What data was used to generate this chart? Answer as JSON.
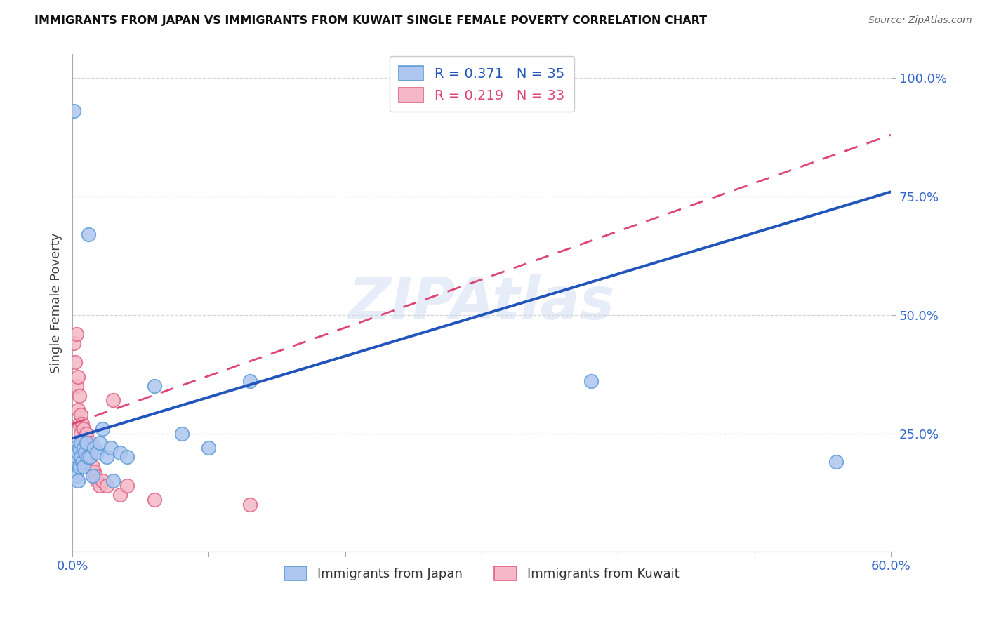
{
  "title": "IMMIGRANTS FROM JAPAN VS IMMIGRANTS FROM KUWAIT SINGLE FEMALE POVERTY CORRELATION CHART",
  "source": "Source: ZipAtlas.com",
  "ylabel_label": "Single Female Poverty",
  "xlim": [
    0.0,
    0.6
  ],
  "ylim": [
    0.0,
    1.05
  ],
  "xtick_positions": [
    0.0,
    0.1,
    0.2,
    0.3,
    0.4,
    0.5,
    0.6
  ],
  "xtick_labels": [
    "0.0%",
    "",
    "",
    "",
    "",
    "",
    "60.0%"
  ],
  "ytick_positions": [
    0.0,
    0.25,
    0.5,
    0.75,
    1.0
  ],
  "ytick_labels": [
    "",
    "25.0%",
    "50.0%",
    "75.0%",
    "100.0%"
  ],
  "legend_r1": "R = 0.371",
  "legend_n1": "N = 35",
  "legend_r2": "R = 0.219",
  "legend_n2": "N = 33",
  "japan_color": "#aec6f0",
  "japan_edge_color": "#5b9bd5",
  "kuwait_color": "#f4b8c8",
  "kuwait_edge_color": "#e06080",
  "japan_line_color": "#2255bb",
  "kuwait_line_color": "#dd4477",
  "watermark": "ZIPAtlas",
  "background_color": "#ffffff",
  "japan_line_x0": 0.0,
  "japan_line_y0": 0.24,
  "japan_line_x1": 0.6,
  "japan_line_y1": 0.76,
  "kuwait_line_x0": 0.0,
  "kuwait_line_y0": 0.27,
  "kuwait_line_x1": 0.6,
  "kuwait_line_y1": 0.88,
  "japan_x": [
    0.001,
    0.002,
    0.002,
    0.003,
    0.003,
    0.004,
    0.004,
    0.005,
    0.005,
    0.006,
    0.006,
    0.007,
    0.008,
    0.008,
    0.009,
    0.01,
    0.011,
    0.012,
    0.013,
    0.015,
    0.016,
    0.018,
    0.02,
    0.022,
    0.025,
    0.028,
    0.03,
    0.035,
    0.04,
    0.06,
    0.08,
    0.1,
    0.13,
    0.38,
    0.56
  ],
  "japan_y": [
    0.93,
    0.19,
    0.22,
    0.16,
    0.2,
    0.15,
    0.21,
    0.18,
    0.22,
    0.2,
    0.23,
    0.19,
    0.18,
    0.22,
    0.21,
    0.23,
    0.2,
    0.67,
    0.2,
    0.16,
    0.22,
    0.21,
    0.23,
    0.26,
    0.2,
    0.22,
    0.15,
    0.21,
    0.2,
    0.35,
    0.25,
    0.22,
    0.36,
    0.36,
    0.19
  ],
  "kuwait_x": [
    0.001,
    0.002,
    0.003,
    0.003,
    0.004,
    0.004,
    0.005,
    0.005,
    0.006,
    0.006,
    0.007,
    0.007,
    0.008,
    0.008,
    0.009,
    0.01,
    0.01,
    0.011,
    0.012,
    0.013,
    0.014,
    0.015,
    0.016,
    0.017,
    0.018,
    0.02,
    0.022,
    0.025,
    0.03,
    0.035,
    0.04,
    0.06,
    0.13
  ],
  "kuwait_y": [
    0.44,
    0.4,
    0.46,
    0.35,
    0.3,
    0.37,
    0.27,
    0.33,
    0.25,
    0.29,
    0.23,
    0.27,
    0.22,
    0.26,
    0.24,
    0.22,
    0.25,
    0.21,
    0.22,
    0.2,
    0.23,
    0.18,
    0.17,
    0.16,
    0.15,
    0.14,
    0.15,
    0.14,
    0.32,
    0.12,
    0.14,
    0.11,
    0.1
  ]
}
